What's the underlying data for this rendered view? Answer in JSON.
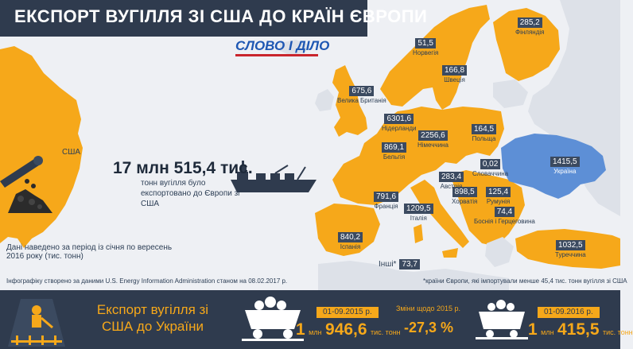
{
  "title": "ЕКСПОРТ ВУГІЛЛЯ ЗІ США ДО КРАЇН ЄВРОПИ",
  "logo": "СЛОВО І ДІЛО",
  "usa": {
    "label": "США"
  },
  "total": {
    "value": "17 млн 515,4 тис.",
    "caption": "тонн вугілля було експортовано до Європи зі США"
  },
  "period_note": "Дані наведено за період із січня по вересень 2016 року (тис. тонн)",
  "source_note": "Інфографіку створено за даними U.S. Energy Information Administration станом на 08.02.2017 р.",
  "footnote": "*країни Європи, які імпортували менше 45,4 тис. тонн вугілля зі США",
  "colors": {
    "importer": "#f6a81a",
    "ukraine": "#5d8fd6",
    "other_land": "#dde1e8",
    "sea": "#eef0f4",
    "dark": "#2f3b4e",
    "label_bg": "#3b4a60"
  },
  "chart_data": {
    "type": "map",
    "units": "тис. тонн",
    "period": "січень–вересень 2016",
    "values": [
      {
        "country": "Фінляндія",
        "value": 285.2,
        "label": "285,2"
      },
      {
        "country": "Норвегія",
        "value": 51.5,
        "label": "51,5"
      },
      {
        "country": "Швеція",
        "value": 166.8,
        "label": "166,8"
      },
      {
        "country": "Велика Британія",
        "value": 675.6,
        "label": "675,6"
      },
      {
        "country": "Нідерланди",
        "value": 6301.6,
        "label": "6301,6"
      },
      {
        "country": "Німеччина",
        "value": 2256.6,
        "label": "2256,6"
      },
      {
        "country": "Польща",
        "value": 164.5,
        "label": "164,5"
      },
      {
        "country": "Бельгія",
        "value": 869.1,
        "label": "869,1"
      },
      {
        "country": "Словаччина",
        "value": 0.02,
        "label": "0,02"
      },
      {
        "country": "Україна",
        "value": 1415.5,
        "label": "1415,5"
      },
      {
        "country": "Австрія",
        "value": 283.4,
        "label": "283,4"
      },
      {
        "country": "Хорватія",
        "value": 898.5,
        "label": "898,5"
      },
      {
        "country": "Румунія",
        "value": 125.4,
        "label": "125,4"
      },
      {
        "country": "Франція",
        "value": 791.6,
        "label": "791,6"
      },
      {
        "country": "Італія",
        "value": 1209.5,
        "label": "1209,5"
      },
      {
        "country": "Боснія і Герцеговина",
        "value": 74.4,
        "label": "74,4"
      },
      {
        "country": "Іспанія",
        "value": 840.2,
        "label": "840,2"
      },
      {
        "country": "Туреччина",
        "value": 1032.5,
        "label": "1032,5"
      },
      {
        "country": "Інші*",
        "value": 73.7,
        "label": "73,7"
      }
    ]
  },
  "ukraine_panel": {
    "title": "Експорт вугілля зі США до України",
    "period_2015": "01-09.2015 р.",
    "value_2015": {
      "big": "1 млн 946,6",
      "unit": "тис. тонн",
      "mln": "1",
      "mln_word": "млн",
      "thousands": "946,6"
    },
    "change_label": "Зміни щодо 2015 р.",
    "change_value": "-27,3 %",
    "period_2016": "01-09.2016 р.",
    "value_2016": {
      "mln": "1",
      "mln_word": "млн",
      "thousands": "415,5",
      "unit": "тис. тонн"
    }
  }
}
